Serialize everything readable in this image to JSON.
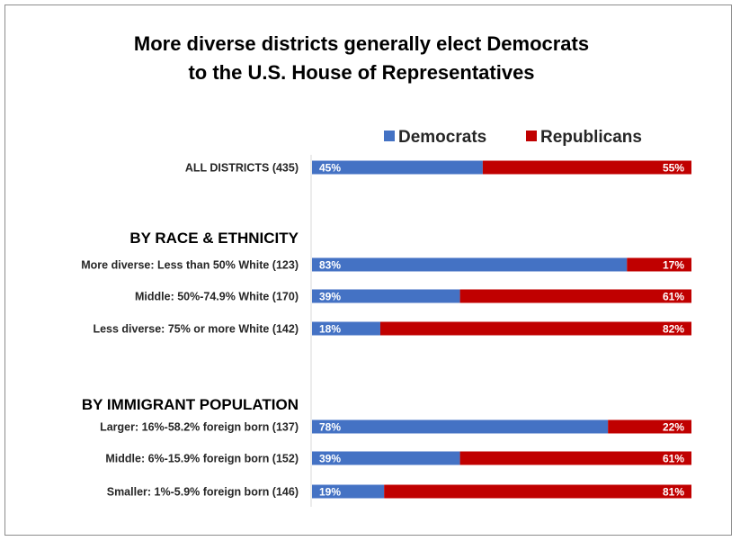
{
  "chart_data": {
    "type": "bar",
    "stacked": true,
    "orientation": "horizontal",
    "title_lines": [
      "More diverse districts generally elect Democrats",
      "to the U.S. House of Representatives"
    ],
    "legend": {
      "placement": "top",
      "entries": [
        "Democrats",
        "Republicans"
      ]
    },
    "colors": {
      "democrats": "#4472c4",
      "republicans": "#c00000"
    },
    "xlim": [
      0,
      100
    ],
    "sections": [
      "BY RACE & ETHNICITY",
      "BY IMMIGRANT POPULATION"
    ],
    "categories": [
      "ALL DISTRICTS (435)",
      "More diverse: Less than 50% White (123)",
      "Middle: 50%-74.9% White (170)",
      "Less diverse: 75% or more White (142)",
      "Larger: 16%-58.2% foreign born (137)",
      "Middle: 6%-15.9% foreign born (152)",
      "Smaller: 1%-5.9% foreign born (146)"
    ],
    "series": [
      {
        "name": "Democrats",
        "values": [
          45,
          83,
          39,
          18,
          78,
          39,
          19
        ]
      },
      {
        "name": "Republicans",
        "values": [
          55,
          17,
          61,
          82,
          22,
          61,
          81
        ]
      }
    ],
    "value_labels": {
      "democrats": [
        "45%",
        "83%",
        "39%",
        "18%",
        "78%",
        "39%",
        "19%"
      ],
      "republicans": [
        "55%",
        "17%",
        "61%",
        "82%",
        "22%",
        "61%",
        "81%"
      ]
    }
  }
}
